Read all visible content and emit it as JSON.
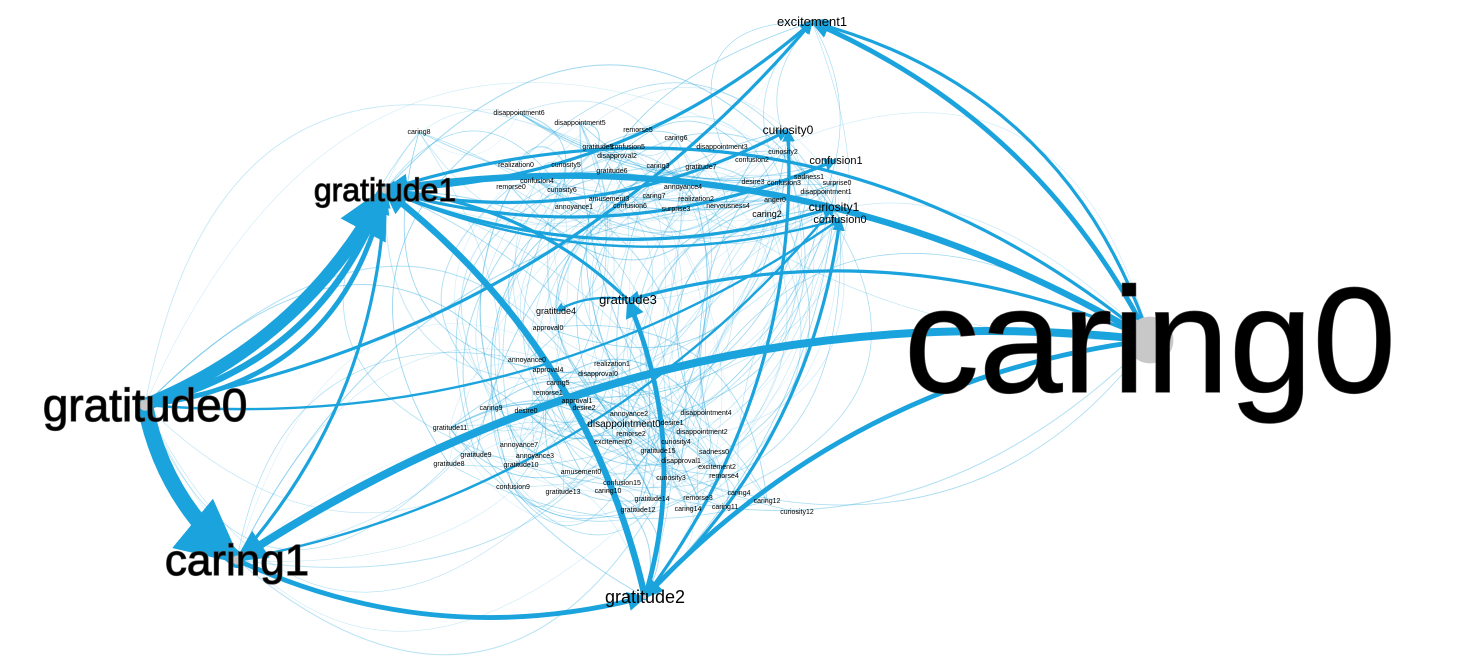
{
  "graph": {
    "edge_color": "#1aa3dc",
    "node_color": "#c8c8c8",
    "label_color": "#000000",
    "nodes": [
      {
        "id": "caring0",
        "label": "caring0",
        "size": 90
      },
      {
        "id": "gratitude0",
        "label": "gratitude0",
        "size": 22
      },
      {
        "id": "gratitude1",
        "label": "gratitude1",
        "size": 14
      },
      {
        "id": "caring1",
        "label": "caring1",
        "size": 18
      },
      {
        "id": "gratitude2",
        "label": "gratitude2",
        "size": 8
      },
      {
        "id": "gratitude3",
        "label": "gratitude3",
        "size": 6
      },
      {
        "id": "excitement1",
        "label": "excitement1",
        "size": 5
      },
      {
        "id": "curiosity0",
        "label": "curiosity0",
        "size": 5
      },
      {
        "id": "curiosity1",
        "label": "curiosity1",
        "size": 5
      },
      {
        "id": "confusion0",
        "label": "confusion0",
        "size": 5
      },
      {
        "id": "confusion1",
        "label": "confusion1",
        "size": 5
      },
      {
        "id": "gratitude4",
        "label": "gratitude4",
        "size": 4
      },
      {
        "id": "disappointment0",
        "label": "disappointment0",
        "size": 4
      },
      {
        "id": "caring2",
        "label": "caring2",
        "size": 3
      },
      {
        "id": "realization1",
        "label": "realization1",
        "size": 3
      },
      {
        "id": "disapproval0",
        "label": "disapproval0",
        "size": 3
      },
      {
        "id": "caring8",
        "label": "caring8",
        "size": 2
      },
      {
        "id": "disappointment6",
        "label": "disappointment6",
        "size": 2
      },
      {
        "id": "disappointment5",
        "label": "disappointment5",
        "size": 2
      },
      {
        "id": "remorse5",
        "label": "remorse5",
        "size": 2
      },
      {
        "id": "caring6",
        "label": "caring6",
        "size": 2
      },
      {
        "id": "gratitude5",
        "label": "gratitude5",
        "size": 2
      },
      {
        "id": "confusion5",
        "label": "confusion5",
        "size": 2
      },
      {
        "id": "disappointment3",
        "label": "disappointment3",
        "size": 2
      },
      {
        "id": "curiosity2",
        "label": "curiosity2",
        "size": 2
      },
      {
        "id": "disapproval2",
        "label": "disapproval2",
        "size": 2
      },
      {
        "id": "confusion2",
        "label": "confusion2",
        "size": 2
      },
      {
        "id": "realization0",
        "label": "realization0",
        "size": 2
      },
      {
        "id": "curiosity5",
        "label": "curiosity5",
        "size": 2
      },
      {
        "id": "caring3",
        "label": "caring3",
        "size": 2
      },
      {
        "id": "gratitude7",
        "label": "gratitude7",
        "size": 2
      },
      {
        "id": "gratitude6",
        "label": "gratitude6",
        "size": 2
      },
      {
        "id": "sadness1",
        "label": "sadness1",
        "size": 2
      },
      {
        "id": "confusion3",
        "label": "confusion3",
        "size": 2
      },
      {
        "id": "desire3",
        "label": "desire3",
        "size": 2
      },
      {
        "id": "surprise0",
        "label": "surprise0",
        "size": 2
      },
      {
        "id": "disappointment1",
        "label": "disappointment1",
        "size": 2
      },
      {
        "id": "confusion4",
        "label": "confusion4",
        "size": 2
      },
      {
        "id": "remorse0",
        "label": "remorse0",
        "size": 2
      },
      {
        "id": "curiosity6",
        "label": "curiosity6",
        "size": 2
      },
      {
        "id": "annoyance4",
        "label": "annoyance4",
        "size": 2
      },
      {
        "id": "amusement3",
        "label": "amusement3",
        "size": 2
      },
      {
        "id": "caring7",
        "label": "caring7",
        "size": 2
      },
      {
        "id": "realization2",
        "label": "realization2",
        "size": 2
      },
      {
        "id": "anger0",
        "label": "anger0",
        "size": 2
      },
      {
        "id": "annoyance1",
        "label": "annoyance1",
        "size": 2
      },
      {
        "id": "confusion6",
        "label": "confusion6",
        "size": 2
      },
      {
        "id": "surprise3",
        "label": "surprise3",
        "size": 2
      },
      {
        "id": "nervousness4",
        "label": "nervousness4",
        "size": 2
      },
      {
        "id": "approval0",
        "label": "approval0",
        "size": 2
      },
      {
        "id": "annoyance0",
        "label": "annoyance0",
        "size": 2
      },
      {
        "id": "approval4",
        "label": "approval4",
        "size": 2
      },
      {
        "id": "caring5",
        "label": "caring5",
        "size": 2
      },
      {
        "id": "remorse1",
        "label": "remorse1",
        "size": 2
      },
      {
        "id": "approval1",
        "label": "approval1",
        "size": 2
      },
      {
        "id": "caring9",
        "label": "caring9",
        "size": 2
      },
      {
        "id": "desire0",
        "label": "desire0",
        "size": 2
      },
      {
        "id": "desire2",
        "label": "desire2",
        "size": 2
      },
      {
        "id": "annoyance2",
        "label": "annoyance2",
        "size": 2
      },
      {
        "id": "disappointment4",
        "label": "disappointment4",
        "size": 2
      },
      {
        "id": "desire1",
        "label": "desire1",
        "size": 2
      },
      {
        "id": "gratitude11",
        "label": "gratitude11",
        "size": 2
      },
      {
        "id": "remorse2",
        "label": "remorse2",
        "size": 2
      },
      {
        "id": "disappointment2",
        "label": "disappointment2",
        "size": 2
      },
      {
        "id": "excitement0",
        "label": "excitement0",
        "size": 2
      },
      {
        "id": "annoyance7",
        "label": "annoyance7",
        "size": 2
      },
      {
        "id": "curiosity4",
        "label": "curiosity4",
        "size": 2
      },
      {
        "id": "gratitude9",
        "label": "gratitude9",
        "size": 2
      },
      {
        "id": "annoyance3",
        "label": "annoyance3",
        "size": 2
      },
      {
        "id": "gratitude15",
        "label": "gratitude15",
        "size": 2
      },
      {
        "id": "sadness0",
        "label": "sadness0",
        "size": 2
      },
      {
        "id": "gratitude8",
        "label": "gratitude8",
        "size": 2
      },
      {
        "id": "gratitude10",
        "label": "gratitude10",
        "size": 2
      },
      {
        "id": "disapproval1",
        "label": "disapproval1",
        "size": 2
      },
      {
        "id": "amusement0",
        "label": "amusement0",
        "size": 2
      },
      {
        "id": "excitement2",
        "label": "excitement2",
        "size": 2
      },
      {
        "id": "remorse4",
        "label": "remorse4",
        "size": 2
      },
      {
        "id": "confusion15",
        "label": "confusion15",
        "size": 2
      },
      {
        "id": "curiosity3",
        "label": "curiosity3",
        "size": 2
      },
      {
        "id": "confusion9",
        "label": "confusion9",
        "size": 2
      },
      {
        "id": "gratitude13",
        "label": "gratitude13",
        "size": 2
      },
      {
        "id": "caring10",
        "label": "caring10",
        "size": 2
      },
      {
        "id": "caring4",
        "label": "caring4",
        "size": 2
      },
      {
        "id": "gratitude14",
        "label": "gratitude14",
        "size": 2
      },
      {
        "id": "remorse3",
        "label": "remorse3",
        "size": 2
      },
      {
        "id": "caring12",
        "label": "caring12",
        "size": 2
      },
      {
        "id": "gratitude12",
        "label": "gratitude12",
        "size": 2
      },
      {
        "id": "caring14",
        "label": "caring14",
        "size": 2
      },
      {
        "id": "caring11",
        "label": "caring11",
        "size": 2
      },
      {
        "id": "curiosity12",
        "label": "curiosity12",
        "size": 2
      }
    ],
    "edges": [
      {
        "source": "gratitude0",
        "target": "caring1",
        "weight": 10
      },
      {
        "source": "gratitude0",
        "target": "gratitude1",
        "weight": 8
      },
      {
        "source": "gratitude0",
        "target": "gratitude1",
        "weight": 4
      },
      {
        "source": "gratitude0",
        "target": "gratitude1",
        "weight": 3
      },
      {
        "source": "caring0",
        "target": "caring1",
        "weight": 5
      },
      {
        "source": "caring0",
        "target": "gratitude1",
        "weight": 4
      },
      {
        "source": "caring0",
        "target": "excitement1",
        "weight": 3
      },
      {
        "source": "caring0",
        "target": "excitement1",
        "weight": 2
      },
      {
        "source": "caring0",
        "target": "gratitude2",
        "weight": 3
      },
      {
        "source": "caring0",
        "target": "gratitude3",
        "weight": 2
      },
      {
        "source": "caring0",
        "target": "gratitude1",
        "weight": 2
      },
      {
        "source": "caring1",
        "target": "gratitude2",
        "weight": 3
      },
      {
        "source": "caring1",
        "target": "gratitude1",
        "weight": 2
      },
      {
        "source": "caring1",
        "target": "curiosity1",
        "weight": 1.5
      },
      {
        "source": "gratitude2",
        "target": "gratitude1",
        "weight": 4
      },
      {
        "source": "gratitude2",
        "target": "gratitude3",
        "weight": 3
      },
      {
        "source": "gratitude2",
        "target": "confusion0",
        "weight": 2
      },
      {
        "source": "gratitude2",
        "target": "curiosity0",
        "weight": 2
      },
      {
        "source": "gratitude1",
        "target": "excitement1",
        "weight": 2
      },
      {
        "source": "gratitude1",
        "target": "curiosity0",
        "weight": 2
      },
      {
        "source": "gratitude1",
        "target": "confusion1",
        "weight": 2
      },
      {
        "source": "gratitude1",
        "target": "curiosity1",
        "weight": 2
      },
      {
        "source": "gratitude1",
        "target": "confusion0",
        "weight": 1.5
      },
      {
        "source": "gratitude0",
        "target": "excitement1",
        "weight": 2
      },
      {
        "source": "gratitude0",
        "target": "confusion0",
        "weight": 1.5
      },
      {
        "source": "gratitude3",
        "target": "gratitude1",
        "weight": 2
      },
      {
        "source": "gratitude3",
        "target": "gratitude4",
        "weight": 1.5
      }
    ]
  }
}
